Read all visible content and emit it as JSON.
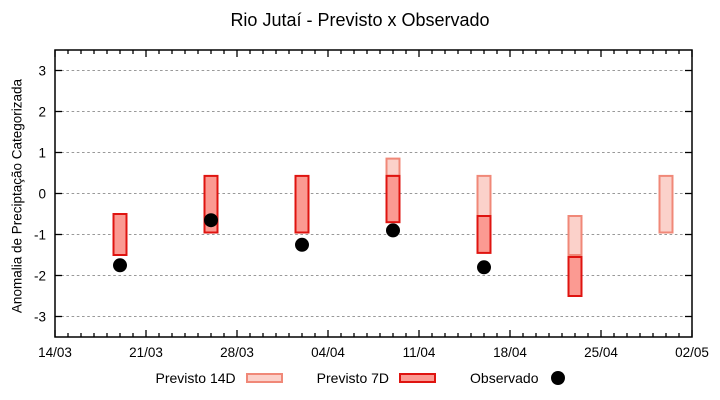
{
  "title": "Rio Jutaí - Previsto x Observado",
  "chart_data": {
    "type": "bar",
    "subtype": "floating-range-bars-with-scatter",
    "title": "Rio Jutaí - Previsto x Observado",
    "xlabel": "",
    "ylabel": "Anomalia de Preciptação Categorizada",
    "ylim": [
      -3.5,
      3.5
    ],
    "x_axis": {
      "start": "14/03",
      "end": "02/05",
      "total_days": 49,
      "major_tick_every_days": 7,
      "minor_tick_every_days": 1
    },
    "x_ticks": [
      "14/03",
      "21/03",
      "28/03",
      "04/04",
      "11/04",
      "18/04",
      "25/04",
      "02/05"
    ],
    "y_ticks": [
      -3,
      -2,
      -1,
      0,
      1,
      2,
      3
    ],
    "grid": "horizontal-dashed",
    "legend_position": "bottom-center",
    "colors": {
      "grid": "#999999",
      "axis": "#000000",
      "background": "#ffffff"
    },
    "series": [
      {
        "id": "previsto-14d",
        "name": "Previsto 14D",
        "type": "floating-bar",
        "fill": "#fbd1ca",
        "border": "#f08878",
        "bars": [
          {
            "date": "09/04",
            "day": 26,
            "low": 0.43,
            "high": 0.85
          },
          {
            "date": "16/04",
            "day": 33,
            "low": -0.55,
            "high": 0.43
          },
          {
            "date": "23/04",
            "day": 40,
            "low": -1.5,
            "high": -0.55
          },
          {
            "date": "30/04",
            "day": 47,
            "low": -0.95,
            "high": 0.43
          }
        ]
      },
      {
        "id": "previsto-7d",
        "name": "Previsto 7D",
        "type": "floating-bar",
        "fill": "#fb9a92",
        "border": "#df1410",
        "bars": [
          {
            "date": "19/03",
            "day": 5,
            "low": -1.5,
            "high": -0.5
          },
          {
            "date": "26/03",
            "day": 12,
            "low": -0.95,
            "high": 0.43
          },
          {
            "date": "02/04",
            "day": 19,
            "low": -0.95,
            "high": 0.43
          },
          {
            "date": "09/04",
            "day": 26,
            "low": -0.7,
            "high": 0.43
          },
          {
            "date": "16/04",
            "day": 33,
            "low": -1.45,
            "high": -0.55
          },
          {
            "date": "23/04",
            "day": 40,
            "low": -2.5,
            "high": -1.55
          }
        ]
      },
      {
        "id": "observado",
        "name": "Observado",
        "type": "scatter",
        "fill": "#000000",
        "points": [
          {
            "date": "19/03",
            "day": 5,
            "value": -1.75
          },
          {
            "date": "26/03",
            "day": 12,
            "value": -0.65
          },
          {
            "date": "02/04",
            "day": 19,
            "value": -1.25
          },
          {
            "date": "09/04",
            "day": 26,
            "value": -0.9
          },
          {
            "date": "16/04",
            "day": 33,
            "value": -1.8
          }
        ]
      }
    ]
  }
}
